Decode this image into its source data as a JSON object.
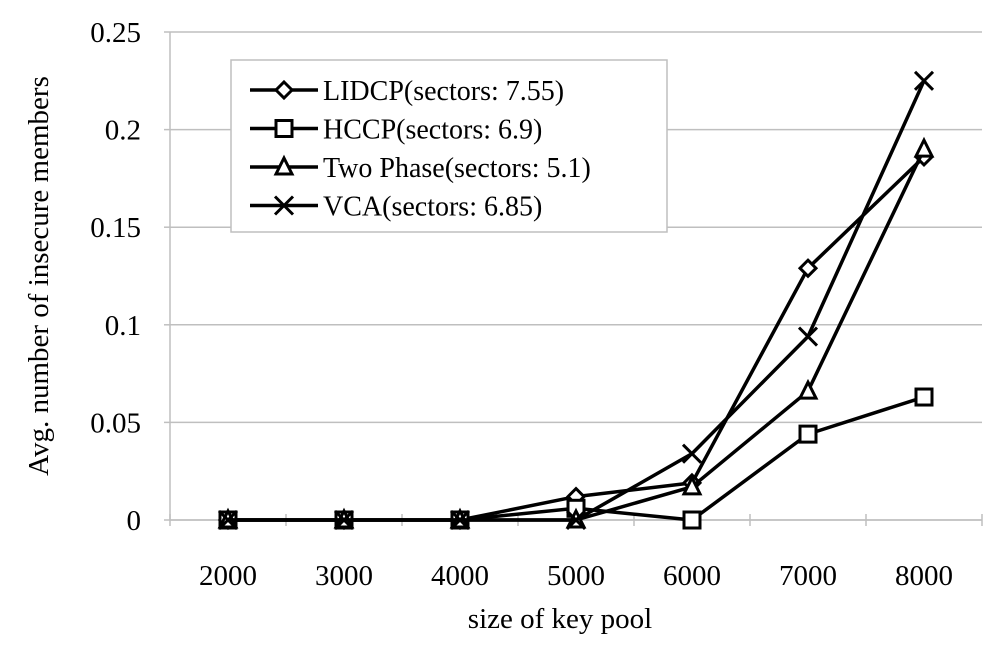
{
  "chart_data": {
    "type": "line",
    "title": "",
    "xlabel": "size of key pool",
    "ylabel": "Avg. number of insecure members",
    "categories": [
      "2000",
      "3000",
      "4000",
      "5000",
      "6000",
      "7000",
      "8000"
    ],
    "y_ticks": [
      "0",
      "0.05",
      "0.1",
      "0.15",
      "0.2",
      "0.25"
    ],
    "ylim": [
      0,
      0.25
    ],
    "grid": {
      "horizontal": true,
      "vertical": false
    },
    "legend_position": "upper-left-inside",
    "series": [
      {
        "name": "LIDCP(sectors: 7.55)",
        "marker": "diamond",
        "values": [
          0,
          0,
          0,
          0.012,
          0.019,
          0.129,
          0.186
        ]
      },
      {
        "name": "HCCP(sectors: 6.9)",
        "marker": "square",
        "values": [
          0,
          0,
          0,
          0.006,
          0,
          0.044,
          0.063
        ]
      },
      {
        "name": "Two Phase(sectors: 5.1)",
        "marker": "triangle",
        "values": [
          0,
          0,
          0,
          0,
          0.017,
          0.066,
          0.19
        ]
      },
      {
        "name": "VCA(sectors: 6.85)",
        "marker": "x",
        "values": [
          0,
          0,
          0,
          0,
          0.034,
          0.094,
          0.225
        ]
      }
    ]
  },
  "colors": {
    "line": "#000000",
    "grid": "#bfbfbf",
    "axis": "#bfbfbf",
    "background": "#ffffff"
  }
}
